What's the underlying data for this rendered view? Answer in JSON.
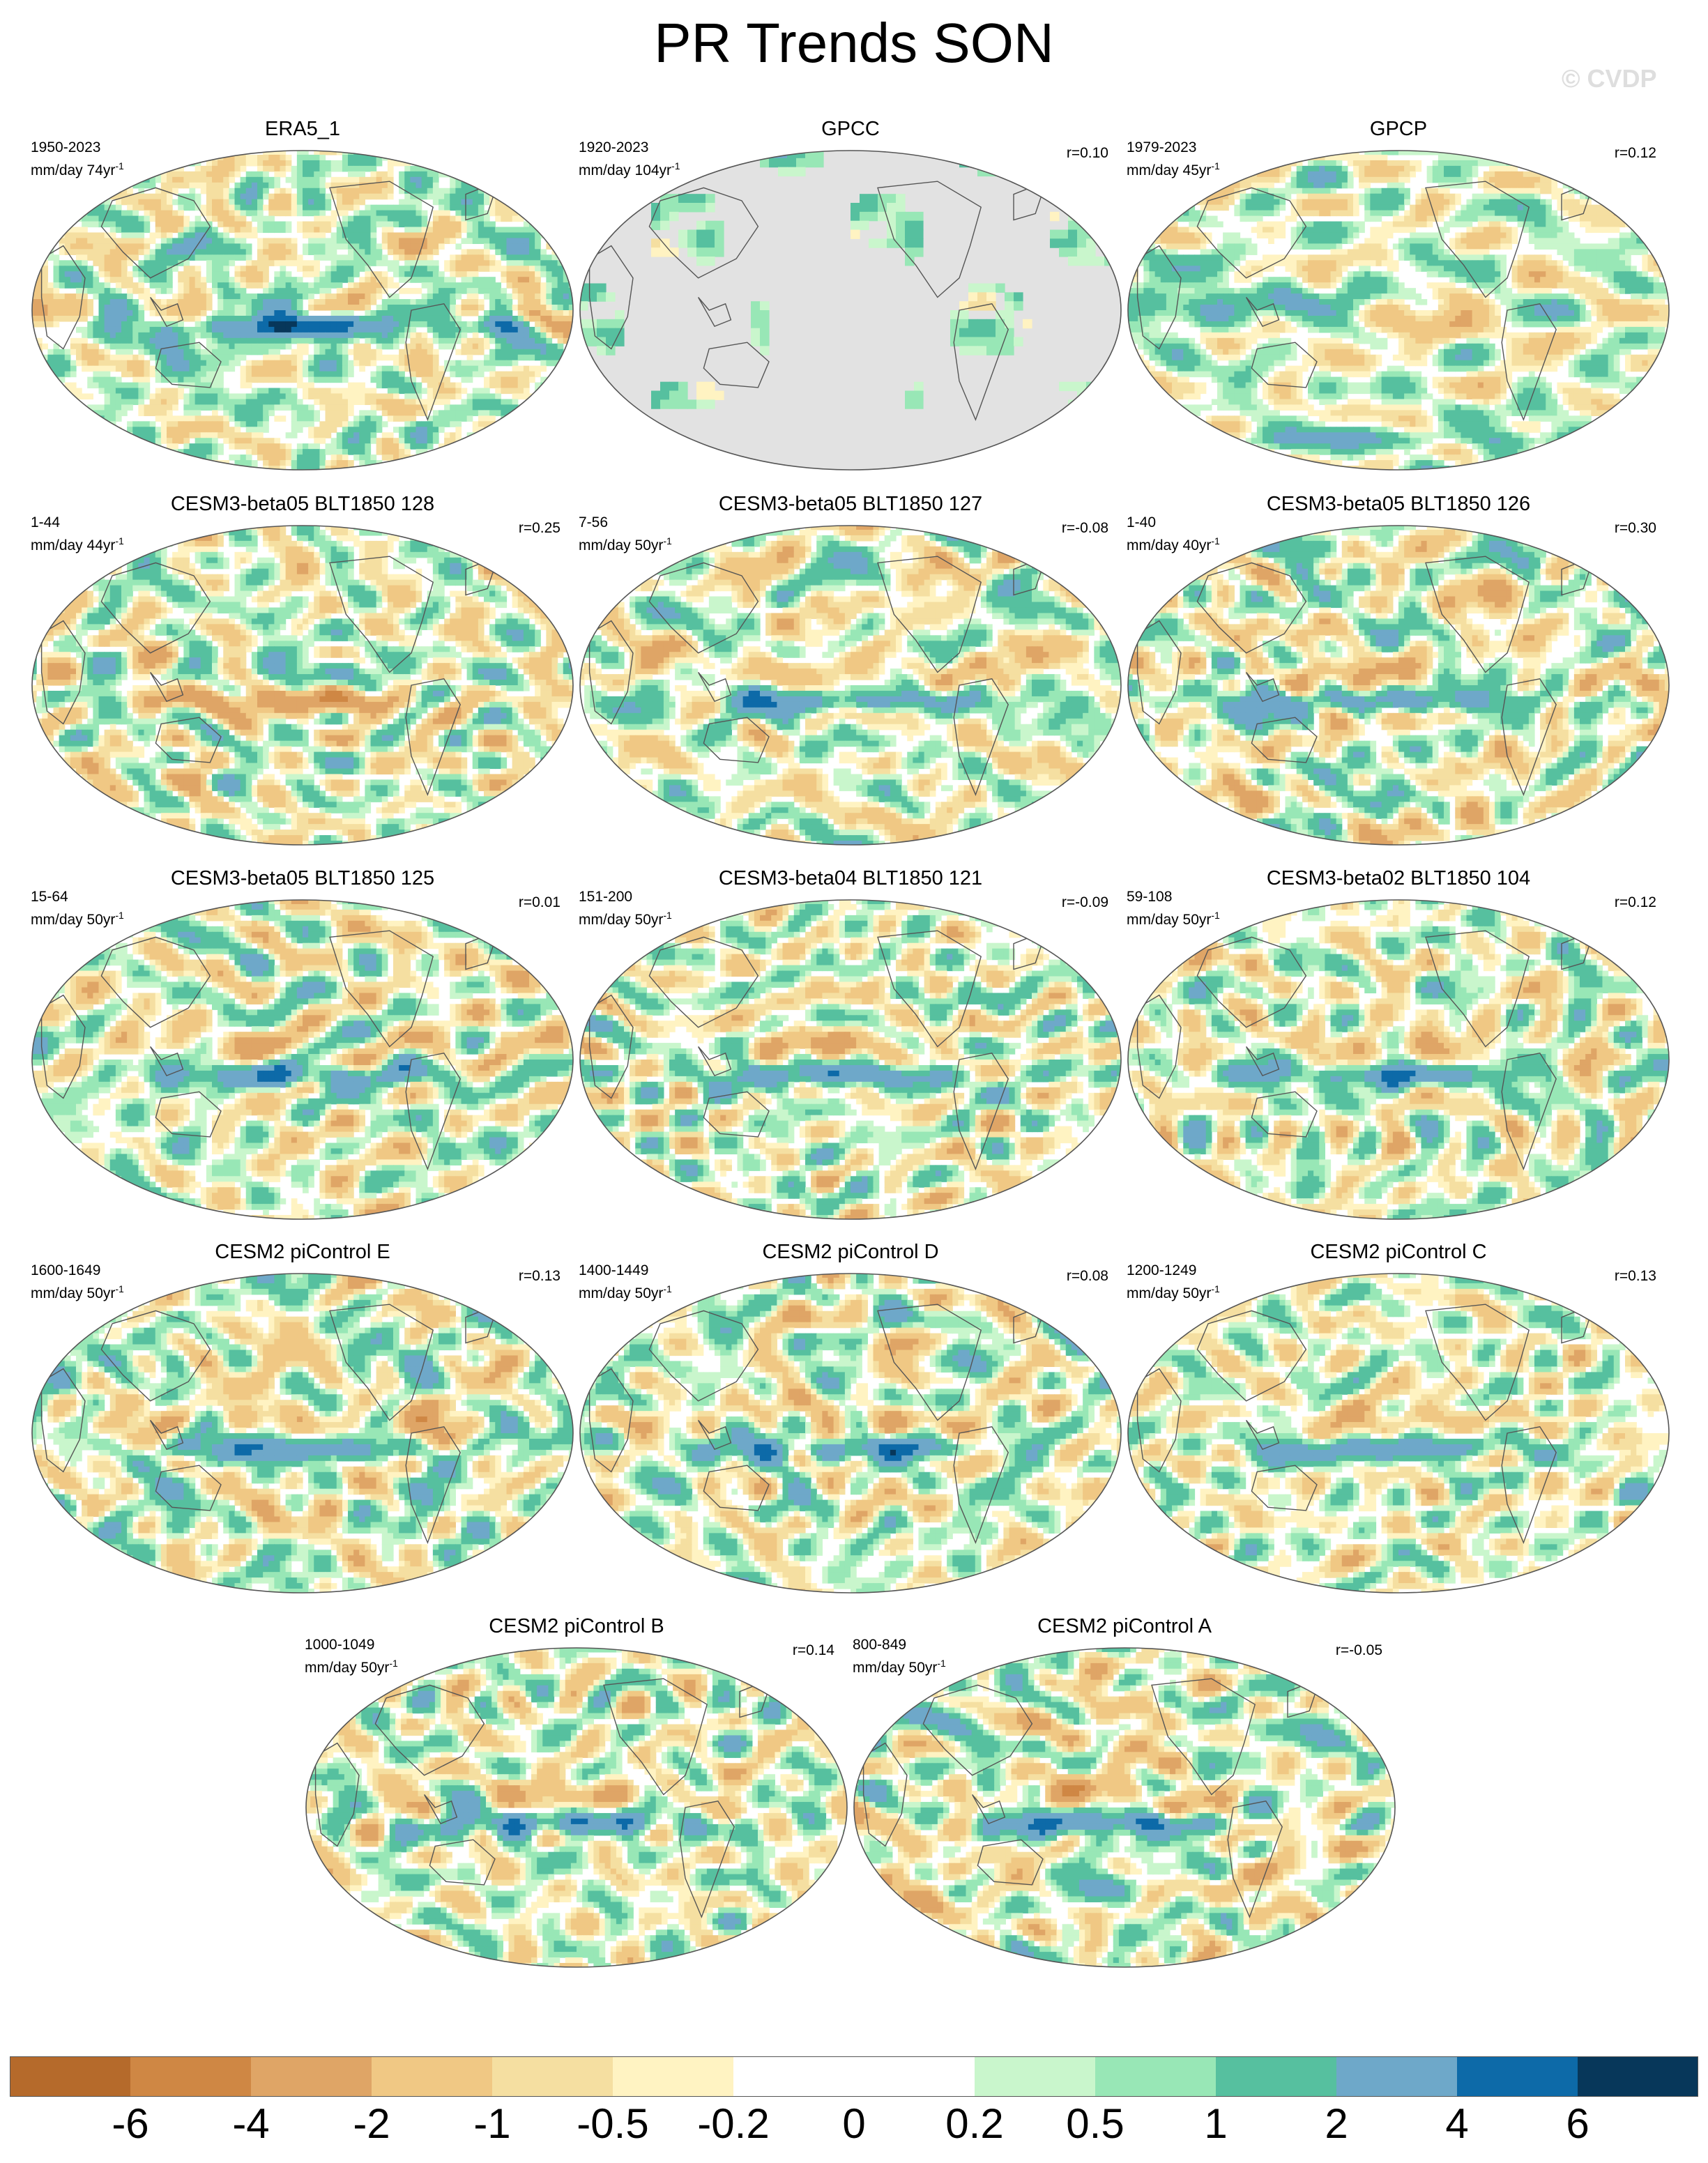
{
  "figure": {
    "title": "PR Trends SON",
    "watermark": "© CVDP"
  },
  "colors": {
    "bins": [
      "#b56a2b",
      "#cf8744",
      "#dfa566",
      "#f0c884",
      "#f5dfa1",
      "#fff3c2",
      "#ffffff",
      "#ffffff",
      "#c9f6cc",
      "#98e7b6",
      "#56c09f",
      "#6ea8c9",
      "#0d6aa8",
      "#07375a"
    ],
    "ocean_gray": "#e2e2e2",
    "coast": "#555555"
  },
  "chart_data": {
    "type": "heatmap",
    "variable": "PR",
    "season": "SON",
    "units": "mm/day",
    "colorbar": {
      "levels": [
        -6,
        -4,
        -2,
        -1,
        -0.5,
        -0.2,
        0,
        0.2,
        0.5,
        1,
        2,
        4,
        6
      ],
      "labels": [
        "-6",
        "-4",
        "-2",
        "-1",
        "-0.5",
        "-0.2",
        "0",
        "0.2",
        "0.5",
        "1",
        "2",
        "4",
        "6"
      ]
    },
    "panels": [
      {
        "title": "ERA5_1",
        "years": "1950-2023",
        "units": "mm/day 74yr",
        "r": "",
        "seed": 11,
        "bias": 0.15,
        "land_only": false,
        "features": "era5"
      },
      {
        "title": "GPCC",
        "years": "1920-2023",
        "units": "mm/day 104yr",
        "r": "r=0.10",
        "seed": 23,
        "bias": 0.3,
        "land_only": true,
        "features": "none"
      },
      {
        "title": "GPCP",
        "years": "1979-2023",
        "units": "mm/day 45yr",
        "r": "r=0.12",
        "seed": 37,
        "bias": 0.1,
        "land_only": false,
        "features": "gpcp"
      },
      {
        "title": "CESM3-beta05 BLT1850 128",
        "years": "1-44",
        "units": "mm/day 44yr",
        "r": "r=0.25",
        "seed": 41,
        "bias": 0.0,
        "land_only": false,
        "features": "model"
      },
      {
        "title": "CESM3-beta05 BLT1850 127",
        "years": "7-56",
        "units": "mm/day 50yr",
        "r": "r=-0.08",
        "seed": 53,
        "bias": -0.05,
        "land_only": false,
        "features": "model"
      },
      {
        "title": "CESM3-beta05 BLT1850 126",
        "years": "1-40",
        "units": "mm/day 40yr",
        "r": "r=0.30",
        "seed": 67,
        "bias": -0.05,
        "land_only": false,
        "features": "model"
      },
      {
        "title": "CESM3-beta05 BLT1850 125",
        "years": "15-64",
        "units": "mm/day 50yr",
        "r": "r=0.01",
        "seed": 71,
        "bias": 0.0,
        "land_only": false,
        "features": "model"
      },
      {
        "title": "CESM3-beta04 BLT1850 121",
        "years": "151-200",
        "units": "mm/day 50yr",
        "r": "r=-0.09",
        "seed": 83,
        "bias": 0.0,
        "land_only": false,
        "features": "model"
      },
      {
        "title": "CESM3-beta02 BLT1850 104",
        "years": "59-108",
        "units": "mm/day 50yr",
        "r": "r=0.12",
        "seed": 97,
        "bias": 0.0,
        "land_only": false,
        "features": "model"
      },
      {
        "title": "CESM2 piControl E",
        "years": "1600-1649",
        "units": "mm/day 50yr",
        "r": "r=0.13",
        "seed": 101,
        "bias": 0.0,
        "land_only": false,
        "features": "model"
      },
      {
        "title": "CESM2 piControl D",
        "years": "1400-1449",
        "units": "mm/day 50yr",
        "r": "r=0.08",
        "seed": 113,
        "bias": 0.05,
        "land_only": false,
        "features": "model"
      },
      {
        "title": "CESM2 piControl C",
        "years": "1200-1249",
        "units": "mm/day 50yr",
        "r": "r=0.13",
        "seed": 127,
        "bias": -0.05,
        "land_only": false,
        "features": "model"
      },
      {
        "title": "CESM2 piControl B",
        "years": "1000-1049",
        "units": "mm/day 50yr",
        "r": "r=0.14",
        "seed": 131,
        "bias": 0.0,
        "land_only": false,
        "features": "model"
      },
      {
        "title": "CESM2 piControl A",
        "years": "800-849",
        "units": "mm/day 50yr",
        "r": "r=-0.05",
        "seed": 139,
        "bias": -0.05,
        "land_only": false,
        "features": "model"
      }
    ]
  }
}
